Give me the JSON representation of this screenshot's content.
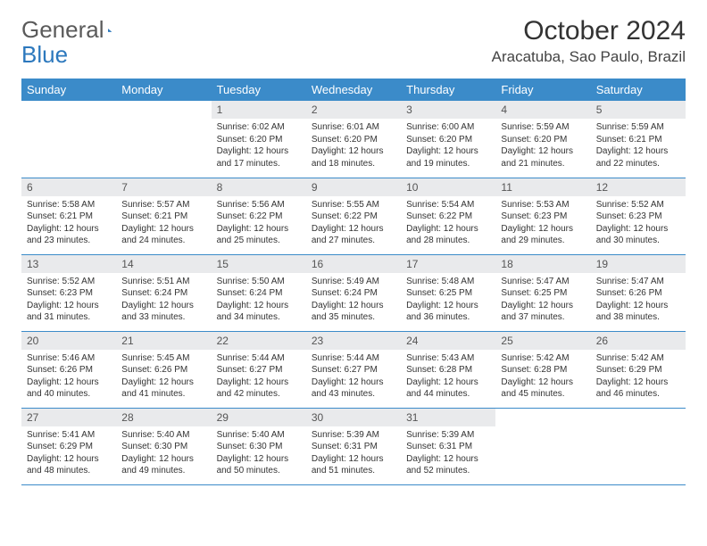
{
  "logo": {
    "text_left": "General",
    "text_right": "Blue",
    "tri_color": "#2c78bd"
  },
  "title": "October 2024",
  "location": "Aracatuba, Sao Paulo, Brazil",
  "colors": {
    "header_bg": "#3b8bc9",
    "header_fg": "#ffffff",
    "daynum_bg": "#e9eaec",
    "row_border": "#3b8bc9",
    "text": "#333333"
  },
  "weekdays": [
    "Sunday",
    "Monday",
    "Tuesday",
    "Wednesday",
    "Thursday",
    "Friday",
    "Saturday"
  ],
  "weeks": [
    [
      null,
      null,
      {
        "n": "1",
        "sr": "6:02 AM",
        "ss": "6:20 PM",
        "d1": "12 hours",
        "d2": "and 17 minutes."
      },
      {
        "n": "2",
        "sr": "6:01 AM",
        "ss": "6:20 PM",
        "d1": "12 hours",
        "d2": "and 18 minutes."
      },
      {
        "n": "3",
        "sr": "6:00 AM",
        "ss": "6:20 PM",
        "d1": "12 hours",
        "d2": "and 19 minutes."
      },
      {
        "n": "4",
        "sr": "5:59 AM",
        "ss": "6:20 PM",
        "d1": "12 hours",
        "d2": "and 21 minutes."
      },
      {
        "n": "5",
        "sr": "5:59 AM",
        "ss": "6:21 PM",
        "d1": "12 hours",
        "d2": "and 22 minutes."
      }
    ],
    [
      {
        "n": "6",
        "sr": "5:58 AM",
        "ss": "6:21 PM",
        "d1": "12 hours",
        "d2": "and 23 minutes."
      },
      {
        "n": "7",
        "sr": "5:57 AM",
        "ss": "6:21 PM",
        "d1": "12 hours",
        "d2": "and 24 minutes."
      },
      {
        "n": "8",
        "sr": "5:56 AM",
        "ss": "6:22 PM",
        "d1": "12 hours",
        "d2": "and 25 minutes."
      },
      {
        "n": "9",
        "sr": "5:55 AM",
        "ss": "6:22 PM",
        "d1": "12 hours",
        "d2": "and 27 minutes."
      },
      {
        "n": "10",
        "sr": "5:54 AM",
        "ss": "6:22 PM",
        "d1": "12 hours",
        "d2": "and 28 minutes."
      },
      {
        "n": "11",
        "sr": "5:53 AM",
        "ss": "6:23 PM",
        "d1": "12 hours",
        "d2": "and 29 minutes."
      },
      {
        "n": "12",
        "sr": "5:52 AM",
        "ss": "6:23 PM",
        "d1": "12 hours",
        "d2": "and 30 minutes."
      }
    ],
    [
      {
        "n": "13",
        "sr": "5:52 AM",
        "ss": "6:23 PM",
        "d1": "12 hours",
        "d2": "and 31 minutes."
      },
      {
        "n": "14",
        "sr": "5:51 AM",
        "ss": "6:24 PM",
        "d1": "12 hours",
        "d2": "and 33 minutes."
      },
      {
        "n": "15",
        "sr": "5:50 AM",
        "ss": "6:24 PM",
        "d1": "12 hours",
        "d2": "and 34 minutes."
      },
      {
        "n": "16",
        "sr": "5:49 AM",
        "ss": "6:24 PM",
        "d1": "12 hours",
        "d2": "and 35 minutes."
      },
      {
        "n": "17",
        "sr": "5:48 AM",
        "ss": "6:25 PM",
        "d1": "12 hours",
        "d2": "and 36 minutes."
      },
      {
        "n": "18",
        "sr": "5:47 AM",
        "ss": "6:25 PM",
        "d1": "12 hours",
        "d2": "and 37 minutes."
      },
      {
        "n": "19",
        "sr": "5:47 AM",
        "ss": "6:26 PM",
        "d1": "12 hours",
        "d2": "and 38 minutes."
      }
    ],
    [
      {
        "n": "20",
        "sr": "5:46 AM",
        "ss": "6:26 PM",
        "d1": "12 hours",
        "d2": "and 40 minutes."
      },
      {
        "n": "21",
        "sr": "5:45 AM",
        "ss": "6:26 PM",
        "d1": "12 hours",
        "d2": "and 41 minutes."
      },
      {
        "n": "22",
        "sr": "5:44 AM",
        "ss": "6:27 PM",
        "d1": "12 hours",
        "d2": "and 42 minutes."
      },
      {
        "n": "23",
        "sr": "5:44 AM",
        "ss": "6:27 PM",
        "d1": "12 hours",
        "d2": "and 43 minutes."
      },
      {
        "n": "24",
        "sr": "5:43 AM",
        "ss": "6:28 PM",
        "d1": "12 hours",
        "d2": "and 44 minutes."
      },
      {
        "n": "25",
        "sr": "5:42 AM",
        "ss": "6:28 PM",
        "d1": "12 hours",
        "d2": "and 45 minutes."
      },
      {
        "n": "26",
        "sr": "5:42 AM",
        "ss": "6:29 PM",
        "d1": "12 hours",
        "d2": "and 46 minutes."
      }
    ],
    [
      {
        "n": "27",
        "sr": "5:41 AM",
        "ss": "6:29 PM",
        "d1": "12 hours",
        "d2": "and 48 minutes."
      },
      {
        "n": "28",
        "sr": "5:40 AM",
        "ss": "6:30 PM",
        "d1": "12 hours",
        "d2": "and 49 minutes."
      },
      {
        "n": "29",
        "sr": "5:40 AM",
        "ss": "6:30 PM",
        "d1": "12 hours",
        "d2": "and 50 minutes."
      },
      {
        "n": "30",
        "sr": "5:39 AM",
        "ss": "6:31 PM",
        "d1": "12 hours",
        "d2": "and 51 minutes."
      },
      {
        "n": "31",
        "sr": "5:39 AM",
        "ss": "6:31 PM",
        "d1": "12 hours",
        "d2": "and 52 minutes."
      },
      null,
      null
    ]
  ],
  "labels": {
    "sunrise": "Sunrise:",
    "sunset": "Sunset:",
    "daylight": "Daylight:"
  }
}
